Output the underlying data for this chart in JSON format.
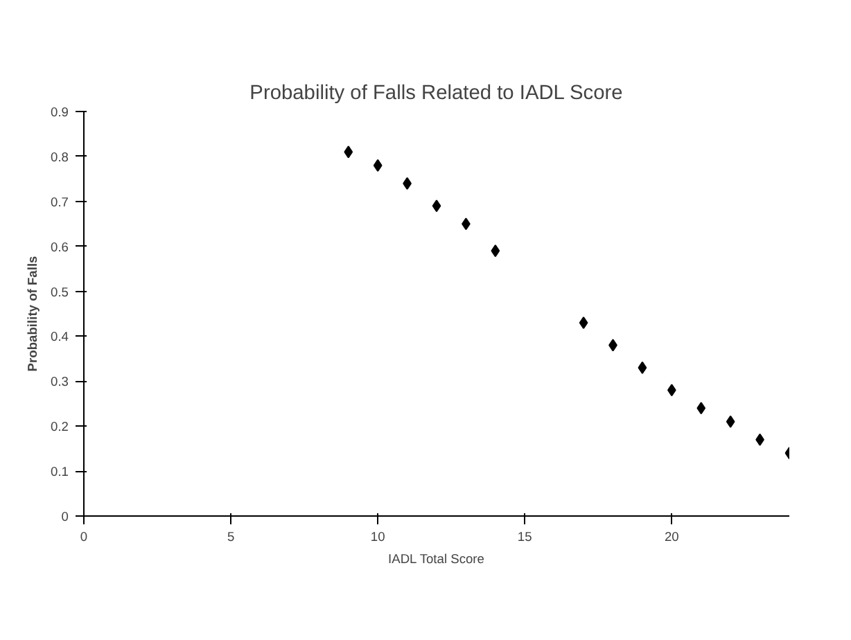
{
  "chart_data": {
    "type": "scatter",
    "title": "Probability of Falls Related to IADL Score",
    "xlabel": "IADL Total Score",
    "ylabel": "Probability of Falls",
    "x": [
      9,
      10,
      11,
      12,
      13,
      14,
      17,
      18,
      19,
      20,
      21,
      22,
      23,
      24
    ],
    "series": [
      {
        "color": "#000000",
        "values": [
          0.81,
          0.78,
          0.74,
          0.69,
          0.65,
          0.59,
          0.43,
          0.38,
          0.33,
          0.28,
          0.24,
          0.21,
          0.17,
          0.14
        ]
      }
    ],
    "xlim": [
      0,
      24
    ],
    "xticks": [
      0,
      5,
      10,
      15,
      20
    ],
    "ylim": [
      0,
      0.9
    ],
    "yticks": [
      0,
      0.1,
      0.2,
      0.3,
      0.4,
      0.5,
      0.6,
      0.7,
      0.8,
      0.9
    ],
    "grid": false,
    "marker": "diamond"
  }
}
